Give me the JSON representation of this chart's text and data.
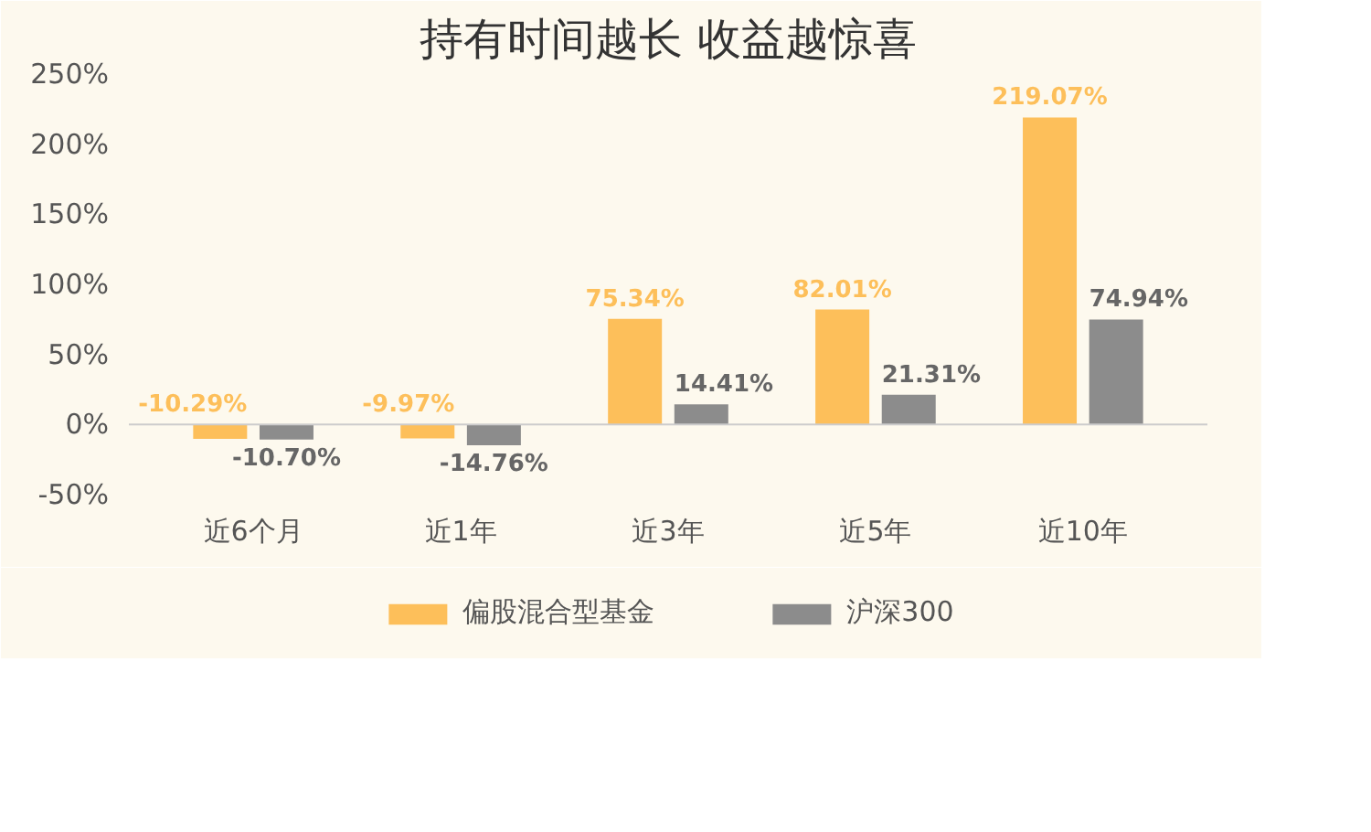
{
  "chart_data": {
    "type": "bar",
    "title": "持有时间越长 收益越惊喜",
    "categories": [
      "近6个月",
      "近1年",
      "近3年",
      "近5年",
      "近10年"
    ],
    "series": [
      {
        "name": "偏股混合型基金",
        "color": "#fdbf5a",
        "values": [
          -10.29,
          -9.97,
          75.34,
          82.01,
          219.07
        ],
        "value_labels": [
          "-10.29%",
          "-9.97%",
          "75.34%",
          "82.01%",
          "219.07%"
        ]
      },
      {
        "name": "沪深300",
        "color": "#8c8c8c",
        "values": [
          -10.7,
          -14.76,
          14.41,
          21.31,
          74.94
        ],
        "value_labels": [
          "-10.70%",
          "-14.76%",
          "14.41%",
          "21.31%",
          "74.94%"
        ]
      }
    ],
    "ylim": [
      -50,
      250
    ],
    "yticks": [
      {
        "value": -50,
        "label": "-50%"
      },
      {
        "value": 0,
        "label": "0%"
      },
      {
        "value": 50,
        "label": "50%"
      },
      {
        "value": 100,
        "label": "100%"
      },
      {
        "value": 150,
        "label": "150%"
      },
      {
        "value": 200,
        "label": "200%"
      },
      {
        "value": 250,
        "label": "250%"
      }
    ],
    "legend": "bottom"
  }
}
